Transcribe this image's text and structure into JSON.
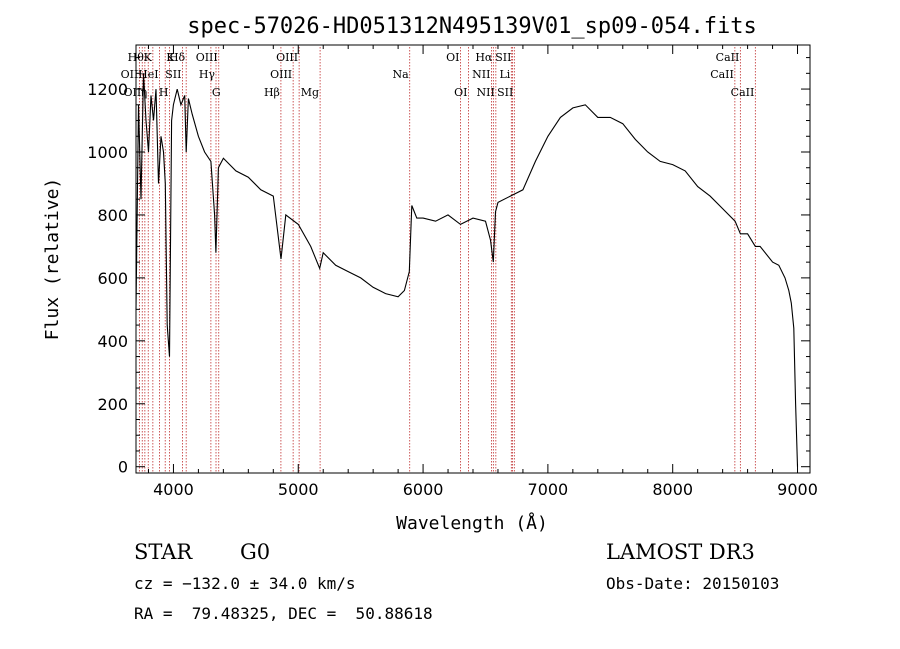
{
  "chart_data": {
    "type": "line",
    "title": "spec-57026-HD051312N495139V01_sp09-054.fits",
    "xlabel": "Wavelength (Å)",
    "ylabel": "Flux (relative)",
    "xlim": [
      3700,
      9100
    ],
    "ylim": [
      -20,
      1340
    ],
    "x_ticks": [
      4000,
      5000,
      6000,
      7000,
      8000,
      9000
    ],
    "y_ticks": [
      0,
      200,
      400,
      600,
      800,
      1000,
      1200
    ],
    "grid": false,
    "line_color": "#000000",
    "marker_color": "#c03030",
    "series": [
      {
        "x": [
          3700,
          3720,
          3740,
          3760,
          3780,
          3800,
          3820,
          3840,
          3860,
          3880,
          3900,
          3920,
          3935,
          3950,
          3968,
          3985,
          4000,
          4030,
          4060,
          4090,
          4102,
          4120,
          4150,
          4200,
          4250,
          4300,
          4330,
          4340,
          4360,
          4400,
          4500,
          4600,
          4700,
          4800,
          4862,
          4900,
          5000,
          5100,
          5172,
          5200,
          5300,
          5400,
          5500,
          5600,
          5700,
          5800,
          5850,
          5890,
          5910,
          5950,
          6000,
          6100,
          6200,
          6300,
          6400,
          6500,
          6540,
          6563,
          6580,
          6600,
          6700,
          6800,
          6900,
          7000,
          7100,
          7200,
          7300,
          7400,
          7500,
          7600,
          7700,
          7800,
          7900,
          8000,
          8100,
          8200,
          8300,
          8400,
          8500,
          8542,
          8600,
          8662,
          8700,
          8800,
          8850,
          8900,
          8930,
          8950,
          8970,
          8985,
          9000
        ],
        "y": [
          500,
          1150,
          850,
          1250,
          1100,
          1000,
          1180,
          1100,
          1200,
          900,
          1050,
          1000,
          900,
          450,
          350,
          1100,
          1150,
          1200,
          1150,
          1180,
          1000,
          1170,
          1120,
          1050,
          1000,
          970,
          800,
          680,
          950,
          980,
          940,
          920,
          880,
          860,
          660,
          800,
          770,
          700,
          630,
          680,
          640,
          620,
          600,
          570,
          550,
          540,
          560,
          620,
          830,
          790,
          790,
          780,
          800,
          770,
          790,
          780,
          720,
          650,
          810,
          840,
          860,
          880,
          970,
          1050,
          1110,
          1140,
          1150,
          1110,
          1110,
          1090,
          1040,
          1000,
          970,
          960,
          940,
          890,
          860,
          820,
          780,
          740,
          740,
          700,
          700,
          650,
          640,
          600,
          560,
          520,
          440,
          200,
          0
        ]
      }
    ],
    "lines": [
      {
        "x": 3727,
        "label": "OII",
        "row": 1,
        "label_side": "left"
      },
      {
        "x": 3750,
        "label": "OII",
        "row": 2,
        "label_side": "left"
      },
      {
        "x": 3771,
        "label": "Hθ",
        "row": 0,
        "label_side": "left"
      },
      {
        "x": 3798,
        "label": "η",
        "row": 2,
        "label_side": "left"
      },
      {
        "x": 3835,
        "label": "K",
        "row": 0,
        "label_side": "left"
      },
      {
        "x": 3889,
        "label": "HeI",
        "row": 1,
        "label_side": "left"
      },
      {
        "x": 3934,
        "label": "K",
        "row": 0,
        "label_side": "right"
      },
      {
        "x": 3968,
        "label": "H",
        "row": 2,
        "label_side": "left"
      },
      {
        "x": 4072,
        "label": "SII",
        "row": 1,
        "label_side": "left"
      },
      {
        "x": 4102,
        "label": "Hδ",
        "row": 0,
        "label_side": "left"
      },
      {
        "x": 4300,
        "label": "G",
        "row": 2,
        "label_side": "right"
      },
      {
        "x": 4341,
        "label": "Hγ",
        "row": 1,
        "label_side": "left"
      },
      {
        "x": 4363,
        "label": "OIII",
        "row": 0,
        "label_side": "left"
      },
      {
        "x": 4861,
        "label": "Hβ",
        "row": 2,
        "label_side": "left"
      },
      {
        "x": 4959,
        "label": "OIII",
        "row": 1,
        "label_side": "left"
      },
      {
        "x": 5007,
        "label": "OIII",
        "row": 0,
        "label_side": "left"
      },
      {
        "x": 5175,
        "label": "Mg",
        "row": 2,
        "label_side": "left"
      },
      {
        "x": 5893,
        "label": "Na",
        "row": 1,
        "label_side": "left"
      },
      {
        "x": 6300,
        "label": "OI",
        "row": 0,
        "label_side": "left"
      },
      {
        "x": 6364,
        "label": "OI",
        "row": 2,
        "label_side": "left"
      },
      {
        "x": 6548,
        "label": "NII",
        "row": 1,
        "label_side": "left"
      },
      {
        "x": 6563,
        "label": "Hα",
        "row": 0,
        "label_side": "left"
      },
      {
        "x": 6583,
        "label": "NII",
        "row": 2,
        "label_side": "left"
      },
      {
        "x": 6707,
        "label": "Li",
        "row": 1,
        "label_side": "left"
      },
      {
        "x": 6716,
        "label": "SII",
        "row": 0,
        "label_side": "left"
      },
      {
        "x": 6731,
        "label": "SII",
        "row": 2,
        "label_side": "left"
      },
      {
        "x": 8498,
        "label": "CaII",
        "row": 1,
        "label_side": "left"
      },
      {
        "x": 8542,
        "label": "CaII",
        "row": 0,
        "label_side": "left"
      },
      {
        "x": 8662,
        "label": "CaII",
        "row": 2,
        "label_side": "left"
      }
    ]
  },
  "info": {
    "object_class": "STAR",
    "subclass": "G0",
    "survey": "LAMOST DR3",
    "cz": "cz = −132.0 ± 34.0 km/s",
    "obs_date": "Obs-Date: 20150103",
    "coords": "RA =  79.48325, DEC =  50.88618"
  }
}
